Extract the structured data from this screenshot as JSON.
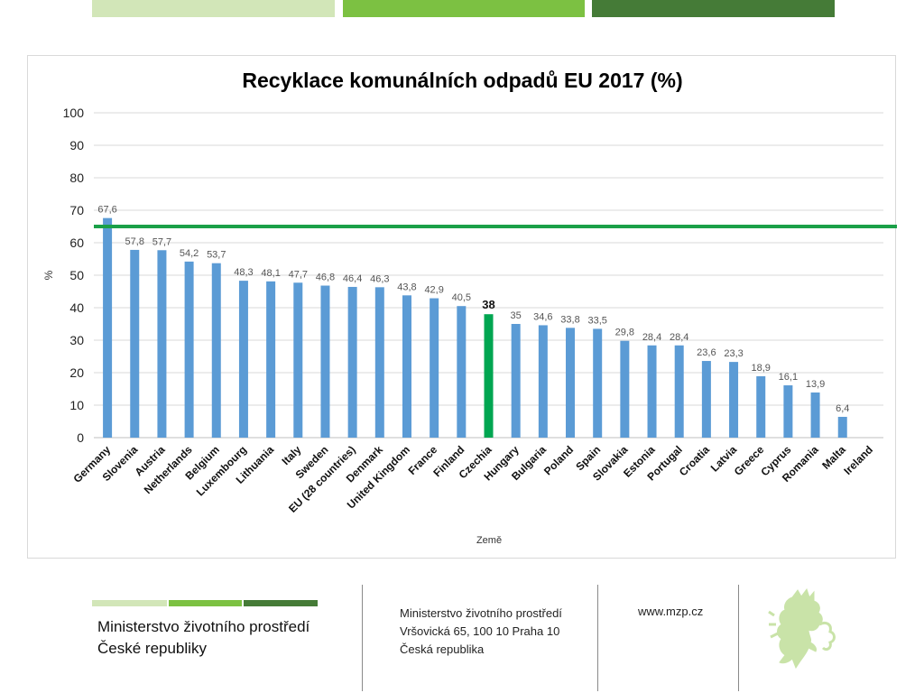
{
  "colors": {
    "bar": "#5b9bd5",
    "highlight_bar": "#00a651",
    "target_line": "#1aa048",
    "gridline": "#d9d9d9",
    "top_light": "#d2e6b8",
    "top_mid": "#7cc142",
    "top_dark": "#457b37",
    "lion": "#c9e3a8"
  },
  "chart_data": {
    "type": "bar",
    "title": "Recyklace komunálních odpadů EU 2017 (%)",
    "xlabel": "Země",
    "ylabel": "%",
    "ylim": [
      0,
      100
    ],
    "yticks": [
      0,
      10,
      20,
      30,
      40,
      50,
      60,
      70,
      80,
      90,
      100
    ],
    "categories": [
      "Germany",
      "Slovenia",
      "Austria",
      "Netherlands",
      "Belgium",
      "Luxembourg",
      "Lithuania",
      "Italy",
      "Sweden",
      "EU (28 countries)",
      "Denmark",
      "United Kingdom",
      "France",
      "Finland",
      "Czechia",
      "Hungary",
      "Bulgaria",
      "Poland",
      "Spain",
      "Slovakia",
      "Estonia",
      "Portugal",
      "Croatia",
      "Latvia",
      "Greece",
      "Cyprus",
      "Romania",
      "Malta",
      "Ireland"
    ],
    "values": [
      67.6,
      57.8,
      57.7,
      54.2,
      53.7,
      48.3,
      48.1,
      47.7,
      46.8,
      46.4,
      46.3,
      43.8,
      42.9,
      40.5,
      38,
      35,
      34.6,
      33.8,
      33.5,
      29.8,
      28.4,
      28.4,
      23.6,
      23.3,
      18.9,
      16.1,
      13.9,
      6.4,
      null
    ],
    "labels": [
      "67,6",
      "57,8",
      "57,7",
      "54,2",
      "53,7",
      "48,3",
      "48,1",
      "47,7",
      "46,8",
      "46,4",
      "46,3",
      "43,8",
      "42,9",
      "40,5",
      "38",
      "35",
      "34,6",
      "33,8",
      "33,5",
      "29,8",
      "28,4",
      "28,4",
      "23,6",
      "23,3",
      "18,9",
      "16,1",
      "13,9",
      "6,4",
      ""
    ],
    "highlight_category": "Czechia",
    "target_line": {
      "value": 65
    },
    "grid": true,
    "legend": "none"
  },
  "footer": {
    "org_line1": "Ministerstvo životního prostředí",
    "org_line2": "České republiky",
    "address_line1": "Ministerstvo životního prostředí",
    "address_line2": "Vršovická 65, 100 10  Praha 10",
    "address_line3": "Česká republika",
    "website": "www.mzp.cz"
  }
}
